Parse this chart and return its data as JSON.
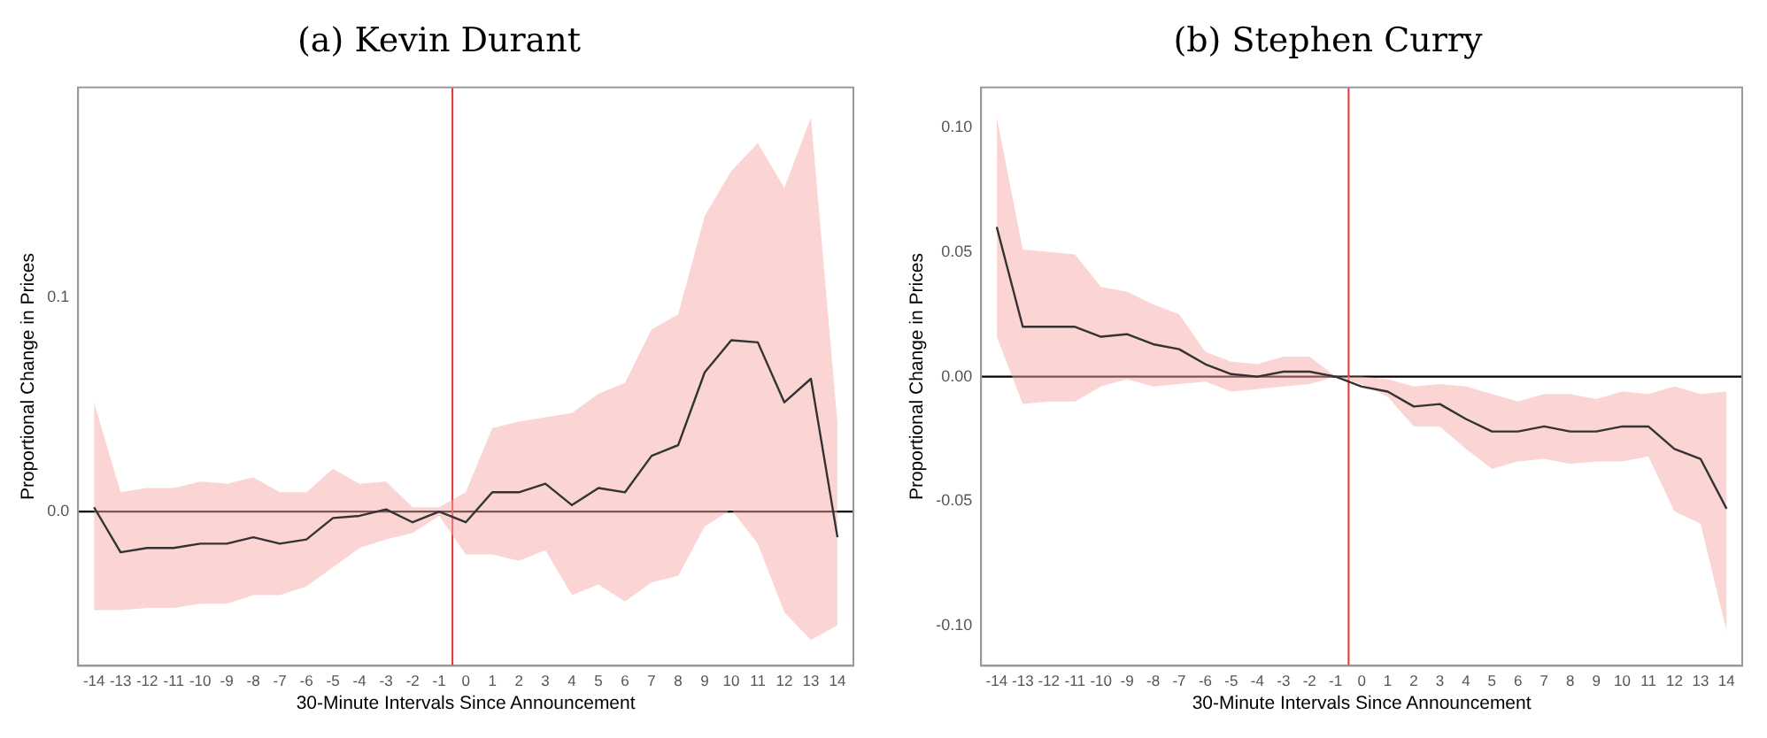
{
  "chart_data": [
    {
      "type": "line",
      "title": "(a) Kevin Durant",
      "xlabel": "30-Minute Intervals Since Announcement",
      "ylabel": "Proportional Change in Prices",
      "x": [
        -14,
        -13,
        -12,
        -11,
        -10,
        -9,
        -8,
        -7,
        -6,
        -5,
        -4,
        -3,
        -2,
        -1,
        0,
        1,
        2,
        3,
        4,
        5,
        6,
        7,
        8,
        9,
        10,
        11,
        12,
        13,
        14
      ],
      "series": [
        {
          "color": "#333333",
          "values": [
            0.002,
            -0.019,
            -0.017,
            -0.017,
            -0.015,
            -0.015,
            -0.012,
            -0.015,
            -0.013,
            -0.003,
            -0.002,
            0.001,
            -0.005,
            0.0,
            -0.005,
            0.009,
            0.009,
            0.013,
            0.003,
            0.011,
            0.009,
            0.026,
            0.031,
            0.065,
            0.08,
            0.079,
            0.051,
            0.062,
            -0.012
          ],
          "lower": [
            -0.046,
            -0.046,
            -0.045,
            -0.045,
            -0.043,
            -0.043,
            -0.039,
            -0.039,
            -0.035,
            -0.026,
            -0.017,
            -0.013,
            -0.01,
            -0.002,
            -0.02,
            -0.02,
            -0.023,
            -0.018,
            -0.039,
            -0.034,
            -0.042,
            -0.033,
            -0.03,
            -0.007,
            0.001,
            -0.015,
            -0.047,
            -0.06,
            -0.053
          ],
          "upper": [
            0.051,
            0.009,
            0.011,
            0.011,
            0.014,
            0.013,
            0.016,
            0.009,
            0.009,
            0.02,
            0.013,
            0.014,
            0.002,
            0.002,
            0.009,
            0.039,
            0.042,
            0.044,
            0.046,
            0.055,
            0.06,
            0.085,
            0.092,
            0.138,
            0.159,
            0.172,
            0.151,
            0.184,
            0.041
          ]
        }
      ],
      "xlim": [
        -14.6,
        14.6
      ],
      "xticks": [
        -14,
        -13,
        -12,
        -11,
        -10,
        -9,
        -8,
        -7,
        -6,
        -5,
        -4,
        -3,
        -2,
        -1,
        0,
        1,
        2,
        3,
        4,
        5,
        6,
        7,
        8,
        9,
        10,
        11,
        12,
        13,
        14
      ],
      "ylim": [
        -0.072,
        0.198
      ],
      "yticks": [
        {
          "value": 0,
          "label": "0.0"
        },
        {
          "value": 0.1,
          "label": "0.1"
        }
      ],
      "ref_lines": [
        {
          "axis": "y",
          "value": 0,
          "color": "#000000"
        },
        {
          "axis": "x",
          "value": -0.5,
          "color": "#e8332f"
        }
      ],
      "grid": false,
      "legend": false,
      "marker": "none",
      "line_style": "solid"
    },
    {
      "type": "line",
      "title": "(b) Stephen Curry",
      "xlabel": "30-Minute Intervals Since Announcement",
      "ylabel": "Proportional Change in Prices",
      "x": [
        -14,
        -13,
        -12,
        -11,
        -10,
        -9,
        -8,
        -7,
        -6,
        -5,
        -4,
        -3,
        -2,
        -1,
        0,
        1,
        2,
        3,
        4,
        5,
        6,
        7,
        8,
        9,
        10,
        11,
        12,
        13,
        14
      ],
      "series": [
        {
          "color": "#333333",
          "values": [
            0.06,
            0.02,
            0.02,
            0.02,
            0.016,
            0.017,
            0.013,
            0.011,
            0.005,
            0.001,
            0.0,
            0.002,
            0.002,
            0.0,
            -0.004,
            -0.006,
            -0.012,
            -0.011,
            -0.017,
            -0.022,
            -0.022,
            -0.02,
            -0.022,
            -0.022,
            -0.02,
            -0.02,
            -0.029,
            -0.033,
            -0.053
          ],
          "lower": [
            0.016,
            -0.011,
            -0.01,
            -0.01,
            -0.004,
            -0.001,
            -0.004,
            -0.003,
            -0.002,
            -0.006,
            -0.005,
            -0.004,
            -0.003,
            0.0,
            -0.003,
            -0.008,
            -0.02,
            -0.02,
            -0.029,
            -0.037,
            -0.034,
            -0.033,
            -0.035,
            -0.034,
            -0.034,
            -0.032,
            -0.054,
            -0.059,
            -0.102
          ],
          "upper": [
            0.104,
            0.051,
            0.05,
            0.049,
            0.036,
            0.034,
            0.029,
            0.025,
            0.01,
            0.006,
            0.005,
            0.008,
            0.008,
            0.0,
            0.0,
            -0.001,
            -0.004,
            -0.003,
            -0.004,
            -0.007,
            -0.01,
            -0.007,
            -0.007,
            -0.009,
            -0.006,
            -0.007,
            -0.004,
            -0.007,
            -0.006
          ]
        }
      ],
      "xlim": [
        -14.6,
        14.6
      ],
      "xticks": [
        -14,
        -13,
        -12,
        -11,
        -10,
        -9,
        -8,
        -7,
        -6,
        -5,
        -4,
        -3,
        -2,
        -1,
        0,
        1,
        2,
        3,
        4,
        5,
        6,
        7,
        8,
        9,
        10,
        11,
        12,
        13,
        14
      ],
      "ylim": [
        -0.116,
        0.116
      ],
      "yticks": [
        {
          "value": 0.1,
          "label": "0.10"
        },
        {
          "value": 0.05,
          "label": "0.05"
        },
        {
          "value": 0,
          "label": "0.00"
        },
        {
          "value": -0.05,
          "label": "-0.05"
        },
        {
          "value": -0.1,
          "label": "-0.10"
        }
      ],
      "ref_lines": [
        {
          "axis": "y",
          "value": 0,
          "color": "#000000"
        },
        {
          "axis": "x",
          "value": -0.5,
          "color": "#e8332f"
        }
      ],
      "grid": false,
      "legend": false,
      "marker": "none",
      "line_style": "solid"
    }
  ]
}
